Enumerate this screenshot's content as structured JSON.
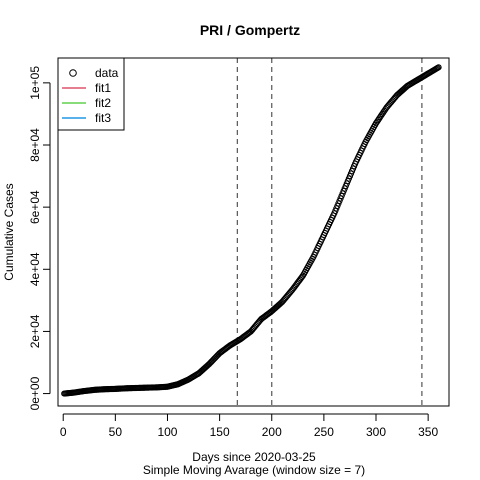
{
  "chart_data": {
    "type": "scatter",
    "title": "PRI / Gompertz",
    "xlabel": "Days since 2020-03-25",
    "xlabel2": "Simple Moving Avarage (window size = 7)",
    "ylabel": "Cumulative Cases",
    "xlim": [
      -5,
      370
    ],
    "ylim": [
      -4000,
      108000
    ],
    "xticks": [
      0,
      50,
      100,
      150,
      200,
      250,
      300,
      350
    ],
    "xtick_labels": [
      "0",
      "50",
      "100",
      "150",
      "200",
      "250",
      "300",
      "350"
    ],
    "yticks": [
      0,
      20000,
      40000,
      60000,
      80000,
      100000
    ],
    "ytick_labels": [
      "0e+00",
      "2e+04",
      "4e+04",
      "6e+04",
      "8e+04",
      "1e+05"
    ],
    "vlines": [
      167,
      200,
      344
    ],
    "data_curve": [
      [
        1,
        0
      ],
      [
        10,
        300
      ],
      [
        20,
        800
      ],
      [
        30,
        1200
      ],
      [
        40,
        1400
      ],
      [
        50,
        1500
      ],
      [
        60,
        1700
      ],
      [
        70,
        1800
      ],
      [
        80,
        1900
      ],
      [
        90,
        2000
      ],
      [
        100,
        2200
      ],
      [
        110,
        3000
      ],
      [
        120,
        4500
      ],
      [
        130,
        6500
      ],
      [
        140,
        9500
      ],
      [
        150,
        13000
      ],
      [
        160,
        15500
      ],
      [
        170,
        17500
      ],
      [
        180,
        20000
      ],
      [
        190,
        24000
      ],
      [
        200,
        26500
      ],
      [
        210,
        29500
      ],
      [
        220,
        33500
      ],
      [
        230,
        38000
      ],
      [
        240,
        44000
      ],
      [
        250,
        51000
      ],
      [
        260,
        58000
      ],
      [
        270,
        66000
      ],
      [
        280,
        74000
      ],
      [
        290,
        81000
      ],
      [
        300,
        87000
      ],
      [
        310,
        92000
      ],
      [
        320,
        96000
      ],
      [
        330,
        99000
      ],
      [
        340,
        101000
      ],
      [
        350,
        103000
      ],
      [
        360,
        105000
      ]
    ],
    "legend": {
      "placement": "top-left",
      "entries": [
        {
          "label": "data",
          "kind": "point",
          "color": "#000000"
        },
        {
          "label": "fit1",
          "kind": "line",
          "color": "#DF536B"
        },
        {
          "label": "fit2",
          "kind": "line",
          "color": "#61D04F"
        },
        {
          "label": "fit3",
          "kind": "line",
          "color": "#2297E6"
        }
      ]
    }
  }
}
